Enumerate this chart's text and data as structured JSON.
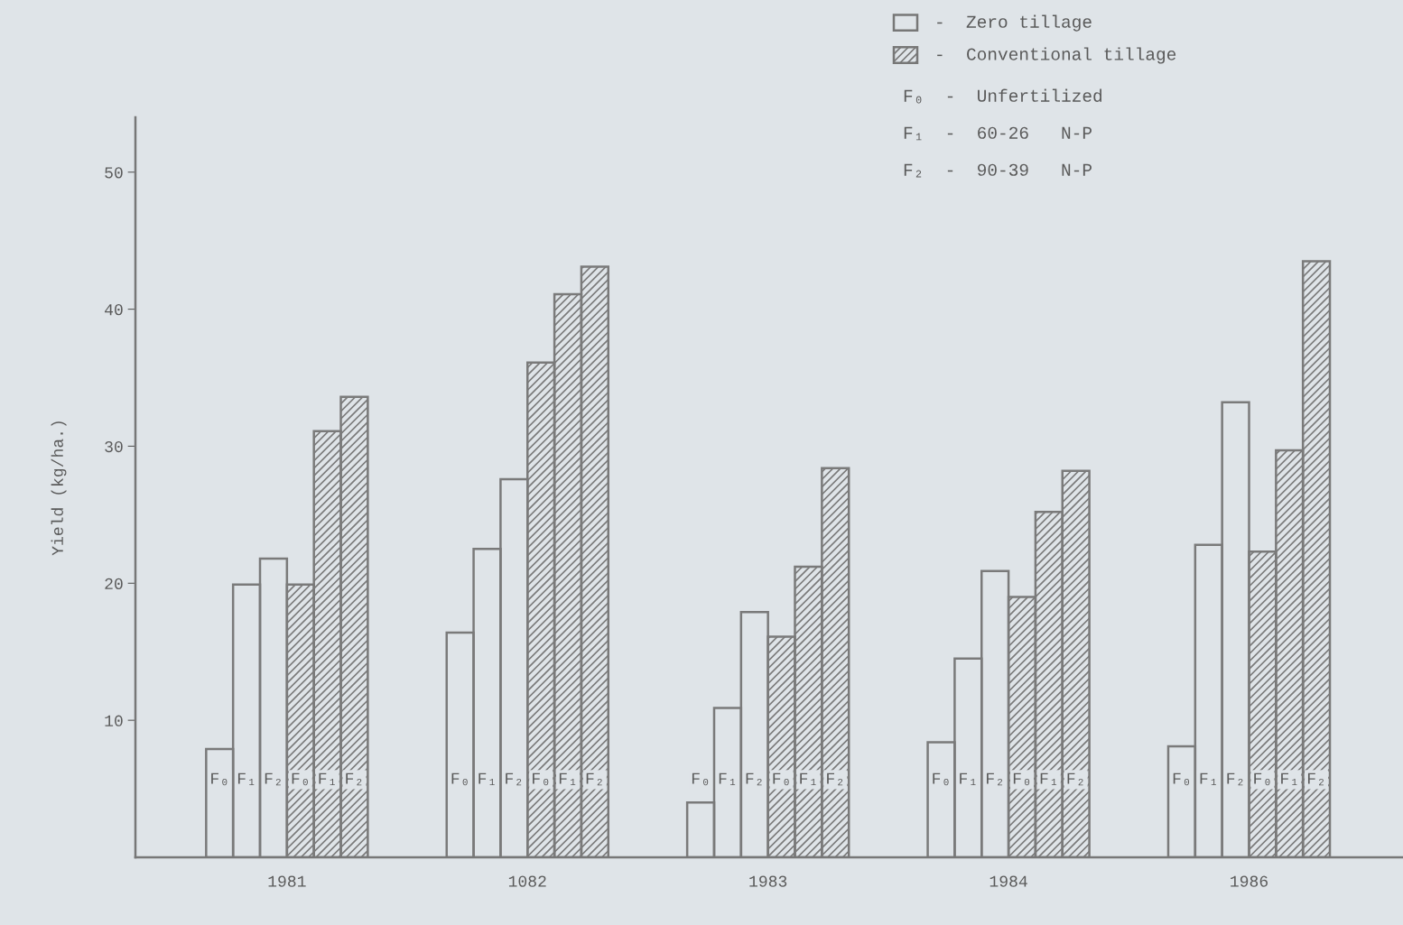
{
  "chart_data": {
    "type": "bar",
    "ylabel": "Yield (kg/ha.)",
    "categories": [
      "1981",
      "1082",
      "1983",
      "1984",
      "1986"
    ],
    "series": [
      {
        "name": "F₀",
        "color": "#7a7a7a",
        "values": [
          7.9,
          16.4,
          4.0,
          8.4,
          8.1
        ]
      },
      {
        "name": "F₁",
        "color": "#7a7a7a",
        "values": [
          19.9,
          22.5,
          10.9,
          14.5,
          22.8
        ]
      },
      {
        "name": "F₂",
        "color": "#7a7a7a",
        "values": [
          21.8,
          27.6,
          17.9,
          20.9,
          33.2
        ]
      },
      {
        "name": "F₀",
        "color": "#7a7a7a",
        "values": [
          19.9,
          36.1,
          16.1,
          19.0,
          22.3
        ]
      },
      {
        "name": "F₁",
        "color": "#7a7a7a",
        "values": [
          31.1,
          41.1,
          21.2,
          25.2,
          29.7
        ]
      },
      {
        "name": "F₂",
        "color": "#7a7a7a",
        "values": [
          33.6,
          43.1,
          28.4,
          28.2,
          43.5
        ]
      }
    ],
    "ylim": [
      0,
      54
    ],
    "yticks": [
      10,
      20,
      30,
      40,
      50
    ],
    "grid": false,
    "annotations": [
      "-  Zero tillage",
      "-  Conventional tillage",
      "F₀  -  Unfertilized",
      "F₁  -  60-26   N-P",
      "F₂  -  90-39   N-P"
    ]
  }
}
